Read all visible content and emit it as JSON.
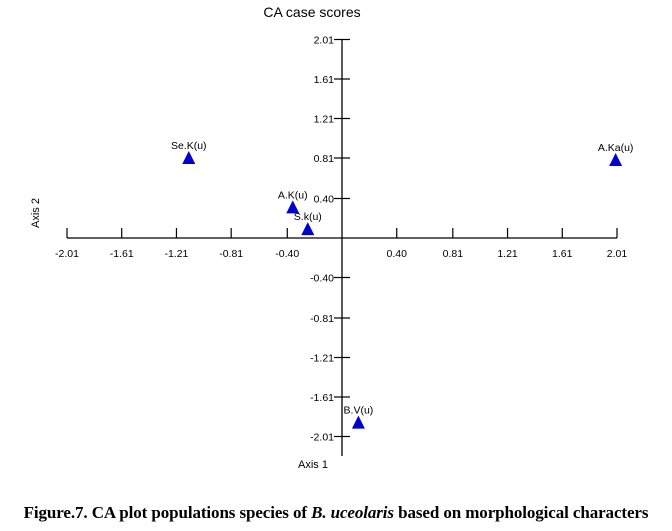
{
  "chart_data": {
    "type": "scatter",
    "title": "CA case scores",
    "xlabel": "Axis 1",
    "ylabel": "Axis 2",
    "xlim": [
      -2.01,
      2.01
    ],
    "ylim": [
      -2.01,
      2.01
    ],
    "xticks": [
      -2.01,
      -1.61,
      -1.21,
      -0.81,
      -0.4,
      0.4,
      0.81,
      1.21,
      1.61,
      2.01
    ],
    "xtick_labels": [
      "-2.01",
      "-1.61",
      "-1.21",
      "-0.81",
      "-0.40",
      "0.40",
      "0.81",
      "1.21",
      "1.61",
      "2.01"
    ],
    "yticks": [
      2.01,
      1.61,
      1.21,
      0.81,
      0.4,
      -0.4,
      -0.81,
      -1.21,
      -1.61,
      -2.01
    ],
    "ytick_labels": [
      "2.01",
      "1.61",
      "1.21",
      "0.81",
      "0.40",
      "-0.40",
      "-0.81",
      "-1.21",
      "-1.61",
      "-2.01"
    ],
    "grid": false,
    "marker": "triangle",
    "marker_color": "#0000cc",
    "points": [
      {
        "label": "Se.K(u)",
        "x": -1.12,
        "y": 0.81
      },
      {
        "label": "A.K(u)",
        "x": -0.36,
        "y": 0.31
      },
      {
        "label": "S.k(u)",
        "x": -0.25,
        "y": 0.09
      },
      {
        "label": "A.Ka(u)",
        "x": 2.0,
        "y": 0.79
      },
      {
        "label": "B.V(u)",
        "x": 0.12,
        "y": -1.87
      }
    ]
  },
  "caption": {
    "prefix": "Figure.7. CA plot populations species of ",
    "italic": "B. uceolaris",
    "suffix": " based on morphological characters"
  }
}
